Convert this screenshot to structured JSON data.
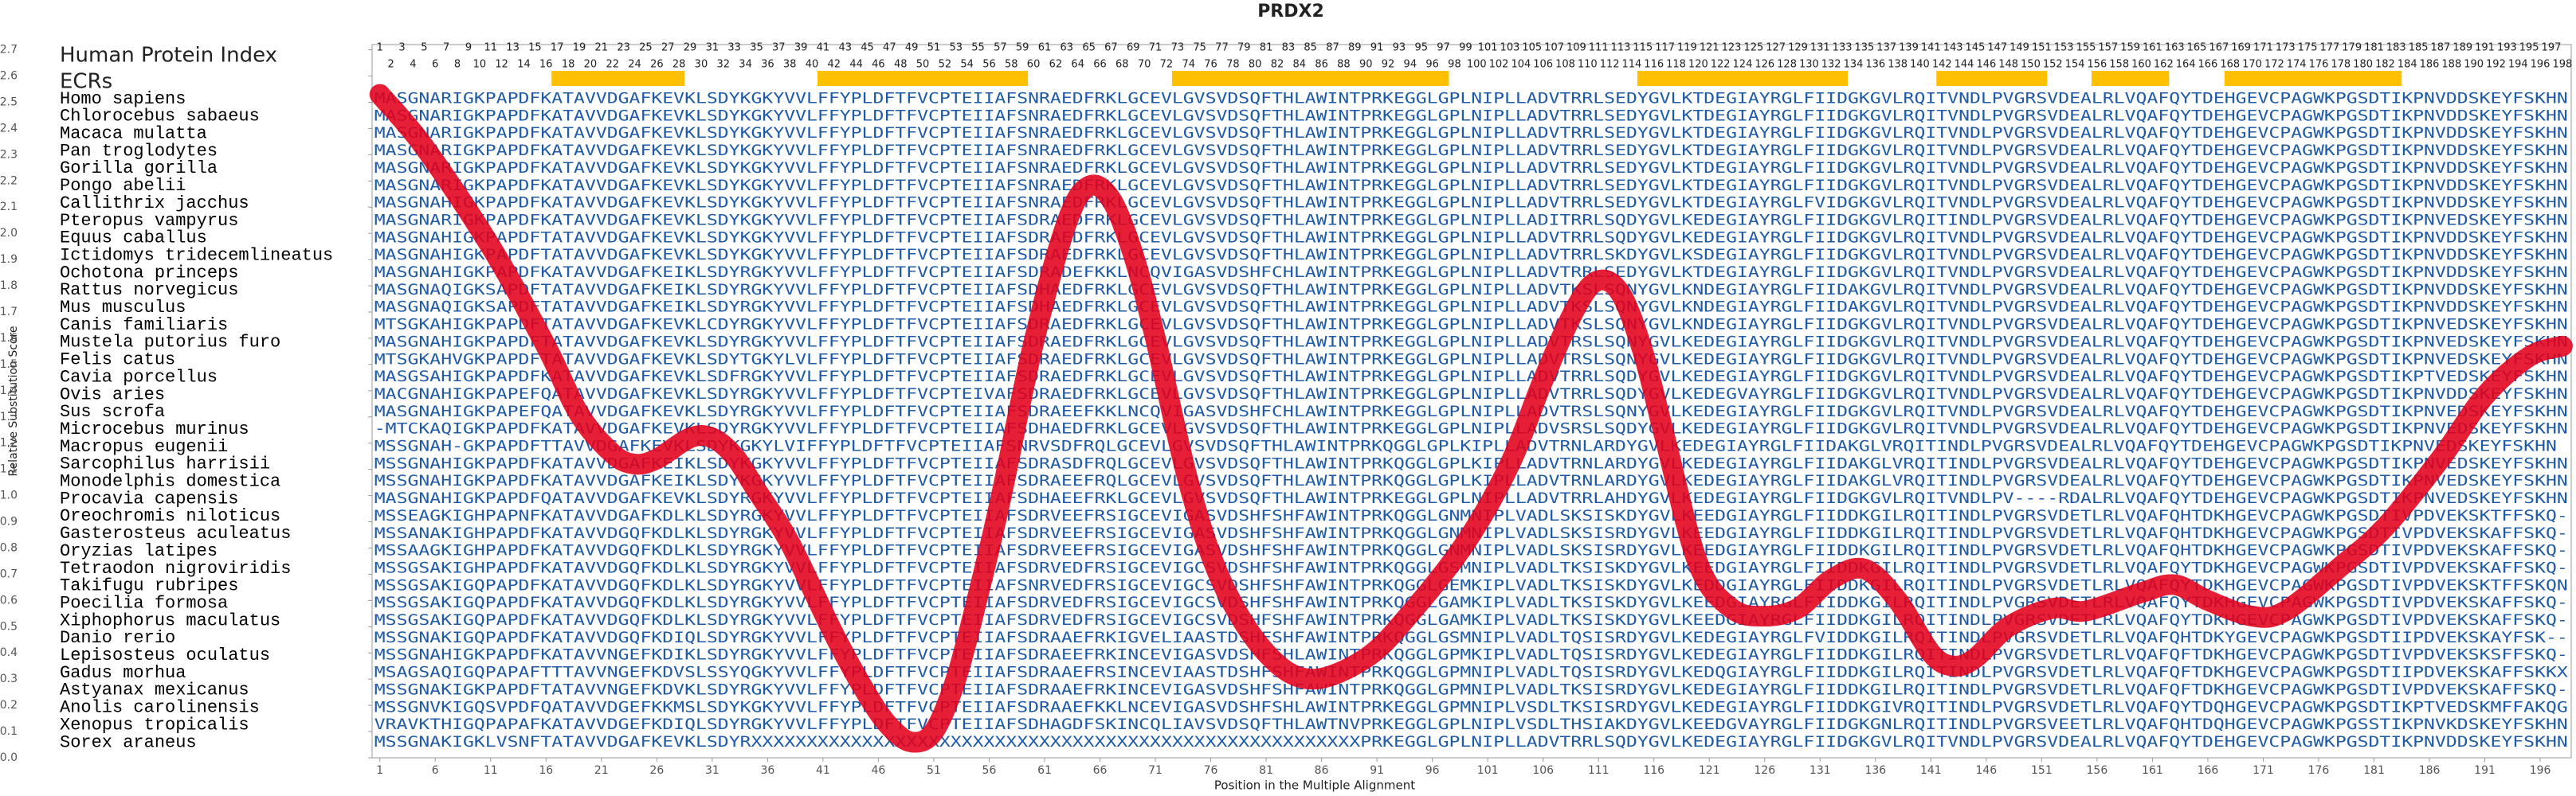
{
  "chart_data": {
    "type": "line",
    "title": "PRDX2",
    "ylabel": "Relative Substitution Score",
    "xlabel": "Position in the Multiple Alignment",
    "color": "#e3001b",
    "x": [
      1,
      5,
      11,
      16,
      19,
      22,
      24,
      26,
      29,
      31,
      33,
      35,
      38,
      42,
      45,
      47,
      49,
      51,
      53,
      55,
      57,
      60,
      63,
      65,
      67,
      69,
      71,
      74,
      77,
      81,
      85,
      90,
      94,
      99,
      103,
      106,
      109,
      111,
      113,
      115,
      117,
      120,
      123,
      126,
      129,
      132,
      135,
      138,
      141,
      143,
      145,
      148,
      152,
      155,
      160,
      163,
      166,
      170,
      173,
      178,
      182,
      187,
      191,
      195,
      198
    ],
    "values": [
      2.53,
      2.33,
      1.95,
      1.57,
      1.31,
      1.16,
      1.12,
      1.14,
      1.22,
      1.22,
      1.15,
      1.02,
      0.82,
      0.47,
      0.24,
      0.12,
      0.06,
      0.1,
      0.3,
      0.62,
      0.98,
      1.58,
      2.04,
      2.18,
      2.13,
      1.92,
      1.6,
      1.05,
      0.67,
      0.4,
      0.3,
      0.38,
      0.55,
      0.82,
      1.12,
      1.44,
      1.72,
      1.82,
      1.77,
      1.55,
      1.22,
      0.74,
      0.57,
      0.54,
      0.57,
      0.68,
      0.72,
      0.6,
      0.4,
      0.35,
      0.38,
      0.5,
      0.57,
      0.56,
      0.63,
      0.66,
      0.6,
      0.54,
      0.56,
      0.73,
      0.88,
      1.14,
      1.38,
      1.53,
      1.57
    ],
    "xlim": [
      0.3,
      198.8
    ],
    "ylim": [
      0,
      2.72
    ],
    "xticks": [
      1,
      6,
      11,
      16,
      21,
      26,
      31,
      36,
      41,
      46,
      51,
      56,
      61,
      66,
      71,
      76,
      81,
      86,
      91,
      96,
      101,
      106,
      111,
      116,
      121,
      126,
      131,
      136,
      141,
      146,
      151,
      156,
      161,
      166,
      171,
      176,
      181,
      186,
      191,
      196
    ],
    "yticks": [
      {
        "value": 0,
        "label": "0.0"
      },
      0.1,
      0.2,
      0.3,
      0.4,
      0.5,
      0.6,
      0.7,
      0.8,
      0.9,
      {
        "value": 1,
        "label": "1.0"
      },
      1.1,
      1.2,
      1.3,
      1.4,
      1.5,
      1.6,
      1.7,
      1.8,
      1.9,
      {
        "value": 2,
        "label": "2.0"
      },
      2.1,
      2.2,
      2.3,
      2.4,
      2.5,
      2.6,
      2.7
    ],
    "index_label": "Human Protein Index",
    "index_ticks": [
      1,
      2,
      3,
      4,
      5,
      6,
      7,
      8,
      9,
      10,
      11,
      12,
      13,
      14,
      15,
      16,
      17,
      18,
      19,
      20,
      21,
      22,
      23,
      24,
      25,
      26,
      27,
      28,
      29,
      30,
      31,
      32,
      33,
      34,
      35,
      36,
      37,
      38,
      39,
      40,
      41,
      42,
      43,
      44,
      45,
      46,
      47,
      48,
      49,
      50,
      51,
      52,
      53,
      54,
      55,
      56,
      57,
      58,
      59,
      60,
      61,
      62,
      63,
      64,
      65,
      66,
      67,
      68,
      69,
      70,
      71,
      72,
      73,
      74,
      75,
      76,
      77,
      78,
      79,
      80,
      81,
      82,
      83,
      84,
      85,
      86,
      87,
      88,
      89,
      90,
      91,
      92,
      93,
      94,
      95,
      96,
      97,
      98,
      99,
      100,
      101,
      102,
      103,
      104,
      105,
      106,
      107,
      108,
      109,
      110,
      111,
      112,
      113,
      114,
      115,
      116,
      117,
      118,
      119,
      120,
      121,
      122,
      123,
      124,
      125,
      126,
      127,
      128,
      129,
      130,
      131,
      132,
      133,
      134,
      135,
      136,
      137,
      138,
      139,
      140,
      141,
      142,
      143,
      144,
      145,
      146,
      147,
      148,
      149,
      150,
      151,
      152,
      153,
      154,
      155,
      156,
      157,
      158,
      159,
      160,
      161,
      162,
      163,
      164,
      165,
      166,
      167,
      168,
      169,
      170,
      171,
      172,
      173,
      174,
      175,
      176,
      177,
      178,
      179,
      180,
      181,
      182,
      183,
      184,
      185,
      186,
      187,
      188,
      189,
      190,
      191,
      192,
      193,
      194,
      195,
      196,
      197,
      198
    ],
    "ecr_label": "ECRs",
    "ecr_color": "#ffc000",
    "ecrs": [
      [
        17,
        28
      ],
      [
        41,
        59
      ],
      [
        73,
        97
      ],
      [
        115,
        133
      ],
      [
        142,
        151
      ],
      [
        156,
        162
      ],
      [
        168,
        183
      ]
    ],
    "alignment": [
      {
        "species": "Homo sapiens",
        "sequence": "MASGNARIGKPAPDFKATAVVDGAFKEVKLSDYKGKYVVLFFYPLDFTFVCPTEIIAFSNRAEDFRKLGCEVLGVSVDSQFTHLAWINTPRKEGGLGPLNIPLLADVTRRLSEDYGVLKTDEGIAYRGLFIIDGKGVLRQITVNDLPVGRSVDEALRLVQAFQYTDEHGEVCPAGWKPGSDTIKPNVDDSKEYFSKHN"
      },
      {
        "species": "Chlorocebus sabaeus",
        "sequence": "MASGNARIGKPAPDFKATAVVDGAFKEVKLSDYKGKYVVLFFYPLDFTFVCPTEIIAFSNRAEDFRKLGCEVLGVSVDSQFTHLAWINTPRKEGGLGPLNIPLLADVTRRLSEDYGVLKTDEGIAYRGLFIIDGKGVLRQITVNDLPVGRSVDEALRLVQAFQYTDEHGEVCPAGWKPGSDTIKPNVDDSKEYFSKHN"
      },
      {
        "species": "Macaca mulatta",
        "sequence": "MASGNARIGKPAPDFKATAVVDGAFKEVKLSDYKGKYVVLFFYPLDFTFVCPTEIIAFSNRAEDFRKLGCEVLGVSVDSQFTHLAWINTPRKEGGLGPLNIPLLADVTRRLSEDYGVLKTDEGIAYRGLFIIDGKGVLRQITVNDLPVGRSVDEALRLVQAFQYTDEHGEVCPAGWKPGSDTIKPNVDDSKEYFSKHN"
      },
      {
        "species": "Pan troglodytes",
        "sequence": "MASGNARIGKPAPDFKATAVVDGAFKEVKLSDYKGKYVVLFFYPLDFTFVCPTEIIAFSNRAEDFRKLGCEVLGVSVDSQFTHLAWINTPRKEGGLGPLNIPLLADVTRRLSEDYGVLKTDEGIAYRGLFIIDGKGVLRQITVNDLPVGRSVDEALRLVQAFQYTDEHGEVCPAGWKPGSDTIKPNVDDSKEYFSKHN"
      },
      {
        "species": "Gorilla gorilla",
        "sequence": "MASGNARIGKPAPDFKATAVVDGAFKEVKLSDYKGKYVVLFFYPLDFTFVCPTEIIAFSNRAEDFRKLGCEVLGVSVDSQFTHLAWINTPRKEGGLGPLNIPLLADVTRRLSEDYGVLKTDEGIAYRGLFIIDGKGVLRQITVNDLPVGRSVDEALRLVQAFQYTDEHGEVCPAGWKPGSDTIKPNVDDSKEYFSKHN"
      },
      {
        "species": "Pongo abelii",
        "sequence": "MASGNARIGKPAPDFKATAVVDGAFKEVKLSDYKGKYVVLFFYPLDFTFVCPTEIIAFSNRAEDFRKLGCEVLGVSVDSQFTHLAWINTPRKEGGLGPLNIPLLADVTRRLSEDYGVLKTDEGIAYRGLFIIDGKGVLRQITVNDLPVGRSVDEALRLVQAFQYTDEHGEVCPAGWKPGSDTIKPNVDDSKEYFSKHN"
      },
      {
        "species": "Callithrix jacchus",
        "sequence": "MASGNAHIGKPAPDFKATAVVDGAFKEVKLSDYKGKYVVLFFYPLDFTFVCPTEIIAFSNRAEDFRKLGCEVLGVSVDSQFTHLAWINTPRKEGGLGPLNIPLLADVTRRLSEDYGVLKTDEGIAYRGLFVIDGKGVLRQITVNDLPVGRSVDEALRLVQAFQYTDEHGEVCPAGWKPGSDTIKPNVDDSKEYFSKHN"
      },
      {
        "species": "Pteropus vampyrus",
        "sequence": "MASGNARIGKPAPDFKATAVVDGAFKEVKLSDYKGKYVVLFFYPLDFTFVCPTEIIAFSDRAEDFRKLGCEVLGVSVDSQFTHLAWINTPRKEGGLGPLNIPLLADITRRLSQDYGVLKEDEGIAYRGLFIIDGKGVLRQITINDLPVGRSVDEALRLVQAFQYTDEHGEVCPAGWKPGSDTIKPNVEDSKEYFSKHN"
      },
      {
        "species": "Equus caballus",
        "sequence": "MASGNAHIGKPAPDFTATAVVDGAFKEVKLSDYKGKYVVLFFYPLDFTFVCPTEIIAFSDRAEDFRKLGCEVLGVSVDSQFTHLAWINTPRKEGGLGPLNIPLLADVTRRLSQDYGVLKEDEGIAYRGLFIIDGKGVLRQITVNDLPVGRSVDEALRLVQAFQYTDEHGEVCPAGWKPGSDTIKPNVDDSKEYFSKHN"
      },
      {
        "species": "Ictidomys tridecemlineatus",
        "sequence": "MASGNAHIGKPAPDFTATAVVDGAFKEVKLSDYKGKYVVLFFYPLDFTFVCPTEIIAFSDRAEDFRKLGCEVLGVSVDSQFTHLAWINTPRKEGGLGPLNIPLLADVTRRLSKDYGVLKSDEGIAYRGLFIIDGKGVLRQITVNDLPVGRSVDEALRLVQAFQYTDEHGEVCPAGWKPGSDTIKPNVDDSKEYFSKHN"
      },
      {
        "species": "Ochotona princeps",
        "sequence": "MASGNAHIGKPAPDFKATAVVDGAFKEIKLSDYRGKYVVLFFYPLDFTFVCPTEIIAFSDRADEFKKLNCQVIGASVDSHFCHLAWINTPRKEGGLGPLNIPLLADVTRRLSEDYGVLKTDEGIAYRGLFIIDGKGVLRQITVNDLPVGRSVDEALRLVQAFQYTDEHGEVCPAGWKPGSDTIKPNVDDSKEYFSKHN"
      },
      {
        "species": "Rattus norvegicus",
        "sequence": "MASGNAQIGKSAPDFTATAVVDGAFKEIKLSDYRGKYVVLFFYPLDFTFVCPTEIIAFSDHAEDFRKLGCEVLGVSVDSQFTHLAWINTPRKEGGLGPLNIPLLADVTKSLSQNYGVLKNDEGIAYRGLFIIDAKGVLRQITVNDLPVGRSVDEALRLVQAFQYTDEHGEVCPAGWKPGSDTIKPNVDDSKEYFSKHN"
      },
      {
        "species": "Mus musculus",
        "sequence": "MASGNAQIGKSAPDFTATAVVDGAFKEIKLSDYRGKYVVLFFYPLDFTFVCPTEIIAFSDHAEDFRKLGCEVLGVSVDSQFTHLAWINTPRKEGGLGPLNIPLLADVTKSLSQNYGVLKNDEGIAYRGLFIIDAKGVLRQITVNDLPVGRSVDEALRLVQAFQYTDEHGEVCPAGWKPGSDTIKPNVDDSKEYFSKHN"
      },
      {
        "species": "Canis familiaris",
        "sequence": "MTSGKAHIGKPAPDFTATAVVDGAFKEVKLCDYRGKYVVLFFYPLDFTFVCPTEIIAFSDRAEDFRKLGCEVLGVSVDSQFTHLAWINTPRKEGGLGPLNIPLLADVTKSLSQNYGVLKNDEGIAYRGLFIIDGKGVLRQITVNDLPVGRSVDEALRLVQAFQYTDEHGEVCPAGWKPGSDTIKPNVEDSKEYFSKHN"
      },
      {
        "species": "Mustela putorius furo",
        "sequence": "MASGNAHIGKPAPDFTATAVVDGAFKEVKLSDYRGKYVVLFFYPLDFTFVCPTEIIAFSDRAEDFRKLGCEVLGVSVDSQFTHLAWINTPRKEGGLGPLNIPLLADVTRSLSQNYGVLKEDEGIAYRGLFIIDGKGVLRQITVNDLPVGRSVDEALRLVQAFQYTDEHGEVCPAGWKPGSDTIKPNVEDSKEYFSKHN"
      },
      {
        "species": "Felis catus",
        "sequence": "MTSGKAHVGKPAPDFTATAVVDGAFKEVKLSDYTGKYLVLFFYPLDFTFVCPTEIIAFSDRAEDFRKLGCEVLGVSVDSQFTHLAWINTPRKEGGLGPLNIPLLADVTRSLSQNYGVLKEDEGIAYRGLFIIDGKGVLRQITVNDLPVGRSVDEALRLVQAFQYTDEHGEVCPAGWKPGSDTIKPNVEDSKEYFSKHN"
      },
      {
        "species": "Cavia porcellus",
        "sequence": "MASGSAHIGKPAPDFKATAVVDGAFKEVKLSDFRGKYVVLFFYPLDFTFVCPTEIIAFSDRAEDFRKLGCEVLGVSVDSQFTHLAWINTPRKEGGLGPLNIPLLADVTRRLSQDYGVLKEDEGIAYRGLFIIDGKGVLRQITVNDLPVGRSVDEALRLVQAFQYTDEHGEVCPAGWKPGSDTIKPTVEDSKEYFSKHN"
      },
      {
        "species": "Ovis aries",
        "sequence": "MACGNAHIGKPAPEFQATAVVDGAFKEVKLSDYRGKYVVLFFYPLDFTFVCPTEIVAFSDRAEDFRKLGCEVLGVSVDSQFTHLAWINTPRKEGGLGPLNIPLLADVTRRLSQDYGVLKEDEGVAYRGLFIIDGKGVLRQITVNDLPVGRSVDEALRLVQAFQYTDEHGEVCPAGWKPGSDTIKPNVDDSKEYFSKHN"
      },
      {
        "species": "Sus scrofa",
        "sequence": "MASGNAHIGKPAPEFQATAVVDGAFKEVKLSDYRGKYVVLFFYPLDFTFVCPTEIIAFSDRAEEFKKLNCQVIGASVDSHFCHLAWINTPRKEGGLGPLNIPLLADVTRSLSQNYGVLKEDEGIAYRGLFIIDGKGVLRQITVNDLPVGRSVDEALRLVQAFQYTDEHGEVCPAGWKPGSDTIKPNVEDSKEYFSKHN"
      },
      {
        "species": "Microcebus murinus",
        "sequence": "-MTCKAQIGKPAPDFKATAVVDGAFKEVKLSDYRGKYVVLFFYPLDFTFVCPTEIIAFSDHAEDFRKLGCEVLGVSVDSQFTHLAWINTPRKEGGLGPLNIPLLADVSRSLSQDYGVLKEDEGIAYRGLFIIDGKGVLRQITVNDLPVGRSVDEALRLVQAFQYTDEHGEVCPAGWKPGSDTIKPNVEDSKEYFSKHN"
      },
      {
        "species": "Macropus eugenii",
        "sequence": "MSSGNAH-GKPAPDFTTAVVDGAFKEVKLSDYKGKYLVIFFYPLDFTFVCPTEIIAFSNRVSDFRQLGCEVLGVSVDSQFTHLAWINTPRKQGGLGPLKIPLLADVTRNLARDYGVLKEDEGIAYRGLFIIDAKGLVRQITINDLPVGRSVDEALRLVQAFQYTDEHGEVCPAGWKPGSDTIKPNVEDSKEYFSKHN"
      },
      {
        "species": "Sarcophilus harrisii",
        "sequence": "MSSGNAHIGKPAPDFKATAVVDGAFKEIKLSDYKGKYVVLFFYPLDFTFVCPTEIIAFSDRASDFRQLGCEVLGVSVDSQFTHLAWINTPRKQGGLGPLKIPLLADVTRNLARDYGVLKEDEGIAYRGLFIIDAKGLVRQITINDLPVGRSVDEALRLVQAFQYTDEHGEVCPAGWKPGSDTIKPNVEDSKEYFSKHN"
      },
      {
        "species": "Monodelphis domestica",
        "sequence": "MSSGNAHIGKPAPDFKATAVVDGAFKEIKLSDYKGKYVVLFFYPLDFTFVCPTEIIAFSDRAEEFRQLGCEVLGVSVDSQFTHLAWINTPRKQGGLGPLKIPLLADVTRNLARDYGVLKEDEGIAYRGLFIIDAKGLVRQITINDLPVGRSVDEALRLVQAFQYTDEHGEVCPAGWKPGSDTIKPNVEDSKEYFSKHN"
      },
      {
        "species": "Procavia capensis",
        "sequence": "MASGNAHIGKPAPDFQATAVVDGAFKEVKLSDYRGKYVVLFFYPLDFTFVCPTEIIAFSDHAEEFRKLGCEVLGVSVDSQFTHLAWINTPRKEGGLGPLNIPLLADVTRRLAHDYGVLKEDEGIAYRGLFIIDGKGVLRQITVNDLPV----RDALRLVQAFQYTDEHGEVCPAGWKPGSDTIKPNVEDSKEYFSKHN"
      },
      {
        "species": "Oreochromis niloticus",
        "sequence": "MSSEAGKIGHPAPNFKATAVVDGAFKDLKLSDYRGKYVVLFFYPLDFTFVCPTEIIAFSDRVEEFRSIGCEVIGASVDSHFSHFAWINTPRKQGGLGNMNIPLVADLSKSISKDYGVLKEEDGIAYRGLFIIDDKGILRQITINDLPVGRSVDETLRLVQAFQHTDKHGEVCPAGWKPGSDTIVPDVEKSKTFFSKQ-"
      },
      {
        "species": "Gasterosteus aculeatus",
        "sequence": "MSSANAKIGHPAPDFKATAVVDGQFKDLKLSDYRGKYVVLFFYPLDFTFVCPTEIIAFSDRVEEFRSIGCEVIGASVDSHFSHFAWINTPRKQGGLGNMNIPLVADLSKSISRDYGVLKEEDGIAYRGLFIIDDKGILRQITINDLPVGRSVDETLRLVQAFQHTDKHGEVCPAGWKPGSDTIVPDVEKSKAFFSKQ-"
      },
      {
        "species": "Oryzias latipes",
        "sequence": "MSSAAGKIGHPAPDFKATAVVDGQFKDLKLSDYRGKYVVLFFYPLDFTFVCPTEIIAFSDRVEEFRSIGCEVIGASVDSHFSHFAWINTPRKQGGLGNMNIPLVADLSKSISRDYGVLKEEDGIAYRGLFIIDDKGILRQITINDLPVGRSVDETLRLVQAFQHTDKHGEVCPAGWKPGSDTIVPDVEKSKAFFSKQ-"
      },
      {
        "species": "Tetraodon nigroviridis",
        "sequence": "MSSGSAKIGHPAPDFKATAVVDGQFKDLKLSDYRGKYVVLFFYPLDFTFVCPTEIIAFSDRVEDFRSIGCEVIGCSVDSHFSHFAWINTPRKQGGLGSMNIPLVADLTKSISKDYGVLKEEDGIAYRGLFIIDDKGILRQITINDLPVGRSVDETLRLVQAFQYTDKHGEVCPAGWKPGSDTIVPDVEKSKAFFSKQ-"
      },
      {
        "species": "Takifugu rubripes",
        "sequence": "MSSGSAKIGQPAPDFKATAVVDGQFKDLKLSDYRGKYVVLFFYPLDFTFVCPTEIIAFSNRVEDFRSIGCEVIGCSVDSHFSHFAWINTPRKQGGLGEMKIPLVADLTKSISKDYGVLKEDDGIAYRGLFIIDDKGILRQITINDLPVGRSVDETLRLVQAFQYTDKHGEVCPAGWKPGSDTIVPDVEKSKTFFSKQN"
      },
      {
        "species": "Poecilia formosa",
        "sequence": "MSSGSAKIGQPAPDFKATAVVDGQFKDLKLSDYRGKYVVLFFYPLDFTFVCPTEIIAFSDRVEDFRSIGCEVIGCSVDSHFSHFAWINTPRKQGGLGAMKIPLVADLTKSISKDYGVLKEEDGIAYRGLFIIDDKGILRQITINDLPVGRSVDETLRLVQAFQYTDKHGEVCPAGWKPGSDTIVPDVEKSKAFFSKQ-"
      },
      {
        "species": "Xiphophorus maculatus",
        "sequence": "MSSGSAKIGQPAPDFKATAVVDGQFKDLKLSDYRGKYVVLFFYPLDFTFVCPTEIIAFSDRVEDFRSIGCEVIGCSVDSHFSHFAWINTPRKQGGLGAMKIPLVADLTKSISKDYGVLKEEDGIAYRGLFIIDDKGILRQITINDLPVGRSVDETLRLVQAFQYTDKHGEVCPAGWKPGSDTIVPDVEKSKAFFSKQ-"
      },
      {
        "species": "Danio rerio",
        "sequence": "MSSGNAKIGQPAPDFKATAVVDGQFKDIQLSDYRGKYVVLFFYPLDFTFVCPTEIIAFSDRAAEFRKIGVELIAASTDSHFSHFAWINTPRKQGGLGSMNIPLVADLTQSISRDYGVLKEDEGIAYRGLFVIDDKGILRQITINDLPVGRSVDETLRLVQAFQHTDKYGEVCPAGWKPGSDTIIPDVEKSKAYFSK--"
      },
      {
        "species": "Lepisosteus oculatus",
        "sequence": "MSSGNAHIGKPAPDFKATAVVNGEFKDIKLSDYRGKYVVLFFYPLDFTFVCPTEIIAFSDRAEEFRKINCEVIGASVDSHFSHLAWINTPRKQGGLGPMKIPLVADLTQSISRDYGVLKEDEGIAYRGLFIIDDKGILRQITINDLPVGRSVDETLRLVQAFQFTDKHGEVCPAGWKPGSDTIVPDVEKSKSFFSKQ-"
      },
      {
        "species": "Gadus morhua",
        "sequence": "MSAGSAQIGQPAPAFTTTAVVNGEFKDVSLSSYQGKYVVLFFYPLDFTFVCPTEIIAFSDRAAEFRSINCEVIAASTDSHFSHFAWINTPRKQGGLGPMNIPLVADLTQSISRDYGVLKEDQGIAYRGLFIIDDKGILRQITINDLPVGRSVDETLRLVQAFQFTDKHGEVCPAGWKPGSDTIIPDVEKSKAFFSKKX"
      },
      {
        "species": "Astyanax mexicanus",
        "sequence": "MSSGNAKIGKPAPDFTATAVVNGEFKDVKLSDYRGKYVVLFFYPLDFTFVCPTEIIAFSDRAAEFRKINCEVIGASVDSHFSHFAWINTPRKQGGLGPMNIPLVADLTKSISRDYGVLKEDEGIAYRGLFIIDDKGILRQITINDLPVGRSVDETLRLVQAFQFTDKHGEVCPAGWKPGSDTIVPDVEKSKAFFSKQ-"
      },
      {
        "species": "Anolis carolinensis",
        "sequence": "MSSGNVKIGQSVPDFQATAVVDGEFKKMSLSDYKGKYVVLFFYPLDFTFVCPTEIIAFSDRAAEFKKLNCEVIGASVDSHFSHLAWINTPRKEGGLGPMNIPLVSDLTKSISRDYGVLKEDEGIAYRGLFIIDDKGIVRQITINDLPVGRSVDETLRLVQAFQYTDQHGEVCPAGWKPGSDTIKPTVEDSKMFFAKQG"
      },
      {
        "species": "Xenopus tropicalis",
        "sequence": "VRAVKTHIGQPAPAFKATAVVDGEFKDIQLSDYRGKYVVLFFYPLDFTFVCPTEIIAFSDHAGDFSKINCQLIAVSVDSQFTHLAWTNVPRKEGGLGPLNIPLVSDLTHSIAKDYGVLKEEDGVAYRGLFIIDGKGNLRQITINDLPVGRSVEETLRLVQAFQHTDQHGEVCPAGWKPGSSTIKPNVKDSKEYFSKHN"
      },
      {
        "species": "Sorex araneus",
        "sequence": "MSSGNAKIGKLVSNFTATAVVDGAFKEVKLSDYRXXXXXXXXXXXXXXXXXXXXXXXXXXXXXXXXXXXXXXXXXXXXXXXXXXXXXXXPRKEGGLGPLNIPLLADVTRRLSQDYGVLKEDEGIAYRGLFIIDGKGVLRQITVNDLPVGRSVDEALRLVQAFQYTDEHGEVCPAGWKPGSDTIKPNVDDSKEYFSKHN"
      }
    ]
  }
}
